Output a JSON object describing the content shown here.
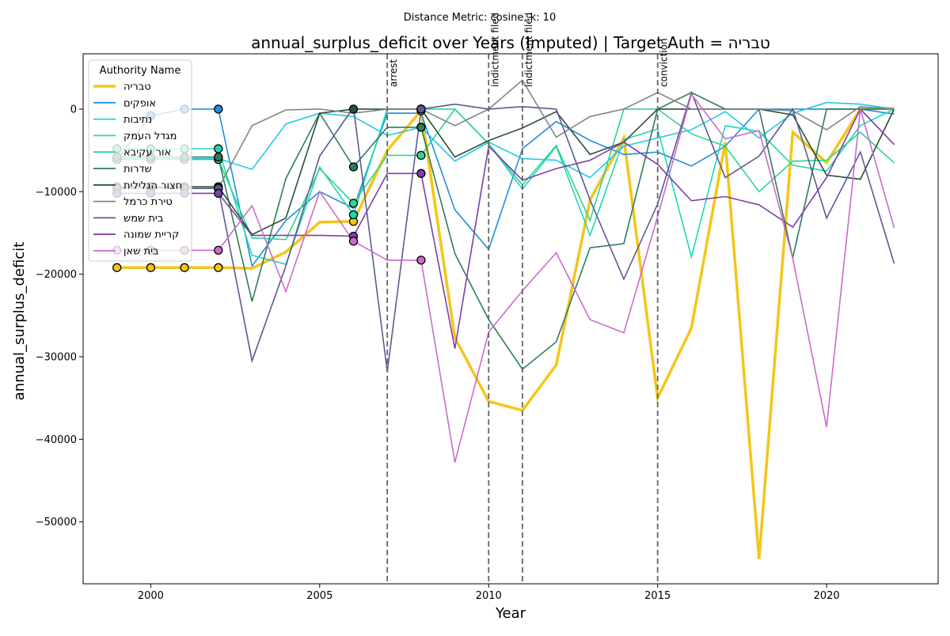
{
  "chart_data": {
    "type": "line",
    "suptitle": "Distance Metric: cosine, k: 10",
    "title": "annual_surplus_deficit over Years (Imputed) | Target Auth = טבריה",
    "xlabel": "Year",
    "ylabel": "annual_surplus_deficit",
    "xlim": [
      1998,
      2023.3
    ],
    "ylim": [
      -57500,
      6700
    ],
    "xticks": [
      2000,
      2005,
      2010,
      2015,
      2020
    ],
    "yticks": [
      -50000,
      -40000,
      -30000,
      -20000,
      -10000,
      0
    ],
    "ytick_labels": [
      "−50000",
      "−40000",
      "−30000",
      "−20000",
      "−10000",
      "0"
    ],
    "grid": false,
    "legend": {
      "title": "Authority Name",
      "placement": "upper-left"
    },
    "events": [
      {
        "year": 2007,
        "label": "arrest"
      },
      {
        "year": 2010,
        "label": "indictment filed"
      },
      {
        "year": 2011,
        "label": "indictment filed"
      },
      {
        "year": 2015,
        "label": "conviction"
      }
    ],
    "x": [
      1999,
      2000,
      2001,
      2002,
      2003,
      2004,
      2005,
      2006,
      2007,
      2008,
      2009,
      2010,
      2011,
      2012,
      2013,
      2014,
      2015,
      2016,
      2017,
      2018,
      2019,
      2020,
      2021,
      2022
    ],
    "series": [
      {
        "name": "טבריה",
        "color": "#f5c518",
        "target": true,
        "values": [
          -19200,
          -19200,
          -19200,
          -19200,
          -19300,
          -17300,
          -13700,
          -13600,
          -5000,
          -200,
          -27700,
          -35400,
          -36500,
          -31000,
          -11000,
          -3500,
          -35000,
          -26500,
          -4000,
          -54500,
          -2800,
          -6500,
          0,
          100
        ],
        "imputed": [
          -19200,
          -19200,
          -19200,
          -19200,
          null,
          null,
          null,
          -13600,
          null,
          -200,
          null,
          null,
          null,
          null,
          null,
          null,
          null,
          null,
          null,
          null,
          null,
          null,
          null,
          null
        ]
      },
      {
        "name": "אופקים",
        "color": "#1f8fdc",
        "values": [
          -6100,
          -800,
          0,
          0,
          -19000,
          -13500,
          -10000,
          -12000,
          -500,
          -500,
          -12200,
          -17000,
          -4800,
          -1500,
          -3800,
          -5500,
          -5200,
          -6900,
          -4500,
          0,
          0,
          0,
          0,
          -600
        ],
        "imputed": [
          -6100,
          -800,
          0,
          0,
          null,
          null,
          null,
          null,
          null,
          null,
          null,
          null,
          null,
          null,
          null,
          null,
          null,
          null,
          null,
          null,
          null,
          null,
          null,
          null
        ]
      },
      {
        "name": "נתיבות",
        "color": "#22c8ea",
        "values": [
          -6000,
          -6000,
          -6000,
          -6000,
          -7300,
          -1800,
          -500,
          -900,
          -3200,
          -2200,
          -6300,
          -4000,
          -6000,
          -6200,
          -8300,
          -4500,
          -3500,
          -2500,
          -300,
          -3500,
          -500,
          800,
          600,
          0
        ],
        "imputed": [
          -6000,
          -6000,
          -6000,
          -6000,
          null,
          null,
          null,
          null,
          null,
          -2200,
          null,
          null,
          null,
          null,
          null,
          null,
          null,
          null,
          null,
          null,
          null,
          null,
          null,
          null
        ]
      },
      {
        "name": "מגדל העמק",
        "color": "#1fd7b4",
        "values": [
          -4800,
          -4800,
          -4800,
          -4800,
          -17700,
          -18800,
          -7000,
          -12800,
          0,
          0,
          0,
          -4200,
          -9700,
          -4500,
          -15300,
          -3700,
          -2400,
          -17900,
          -2000,
          -2700,
          -6800,
          -7500,
          -2000,
          0
        ],
        "imputed": [
          -4800,
          -4800,
          -4800,
          -4800,
          null,
          null,
          null,
          -12800,
          null,
          0,
          null,
          null,
          null,
          null,
          null,
          null,
          null,
          null,
          null,
          null,
          null,
          null,
          null,
          null
        ]
      },
      {
        "name": "אור עקיבא",
        "color": "#2fd392",
        "values": [
          -6100,
          -6100,
          -6100,
          -6100,
          -15600,
          -15800,
          -7200,
          -11400,
          -5600,
          -5600,
          0,
          -4200,
          -9200,
          -4400,
          -13500,
          0,
          0,
          -3000,
          -4500,
          -10000,
          -6300,
          -6200,
          -2800,
          -6500
        ],
        "imputed": [
          -6100,
          -6100,
          -6100,
          -6100,
          null,
          null,
          null,
          -11400,
          null,
          -5600,
          null,
          null,
          null,
          null,
          null,
          null,
          null,
          null,
          null,
          null,
          null,
          null,
          null,
          null
        ]
      },
      {
        "name": "שדרות",
        "color": "#2e7d5b",
        "values": [
          -5800,
          -5800,
          -5800,
          -5800,
          -23300,
          -8400,
          -500,
          -7000,
          -2200,
          -2200,
          -17500,
          -25500,
          -31500,
          -28200,
          -16800,
          -16300,
          0,
          2000,
          0,
          0,
          -18000,
          0,
          0,
          0
        ],
        "imputed": [
          -5800,
          -5800,
          -5800,
          -5800,
          null,
          null,
          null,
          -7000,
          null,
          -2200,
          null,
          null,
          null,
          null,
          null,
          null,
          null,
          null,
          null,
          null,
          null,
          null,
          null,
          null
        ]
      },
      {
        "name": "חצור הגלילית",
        "color": "#2c4f3a",
        "values": [
          -9400,
          -9400,
          -9400,
          -9400,
          -15200,
          -13200,
          -500,
          0,
          0,
          0,
          -5800,
          -3800,
          -2300,
          -300,
          -5500,
          -4000,
          0,
          0,
          0,
          0,
          -700,
          -8000,
          -8500,
          0
        ],
        "imputed": [
          -9400,
          -9400,
          -9400,
          -9400,
          null,
          null,
          null,
          0,
          null,
          0,
          null,
          null,
          null,
          null,
          null,
          null,
          null,
          null,
          null,
          null,
          null,
          null,
          null,
          null
        ]
      },
      {
        "name": "טירת כרמל",
        "color": "#7a8a82",
        "values": [
          -9600,
          -9600,
          -9600,
          -9600,
          -2000,
          -100,
          0,
          -500,
          0,
          0,
          -2000,
          0,
          3500,
          -3400,
          -900,
          0,
          2000,
          0,
          0,
          0,
          -200,
          -2500,
          300,
          0
        ],
        "imputed": [
          -9600,
          -9600,
          -9600,
          -9600,
          null,
          null,
          null,
          null,
          null,
          0,
          null,
          null,
          null,
          null,
          null,
          null,
          null,
          null,
          null,
          null,
          null,
          null,
          null,
          null
        ]
      },
      {
        "name": "בית שמש",
        "color": "#5b5a93",
        "values": [
          -9600,
          -9600,
          -9600,
          -9600,
          -30500,
          -19000,
          -5700,
          200,
          -31800,
          0,
          600,
          0,
          300,
          0,
          -11000,
          -20600,
          -11500,
          2000,
          -8300,
          -5700,
          0,
          -13200,
          -5200,
          -18700
        ],
        "imputed": [
          -9600,
          -9600,
          -9600,
          -9600,
          null,
          null,
          null,
          null,
          null,
          0,
          null,
          null,
          null,
          null,
          null,
          null,
          null,
          null,
          null,
          null,
          null,
          null,
          null,
          null
        ]
      },
      {
        "name": "קריית שמונה",
        "color": "#7d3fa8",
        "values": [
          -10200,
          -10200,
          -10200,
          -10200,
          -15300,
          -15300,
          -15300,
          -15400,
          -7800,
          -7800,
          -29000,
          -4500,
          -8600,
          -7200,
          -6200,
          -4000,
          -6700,
          -11100,
          -10600,
          -11600,
          -14300,
          -8300,
          0,
          -4300
        ],
        "imputed": [
          -10200,
          -10200,
          -10200,
          -10200,
          null,
          null,
          null,
          -15400,
          null,
          -7800,
          null,
          null,
          null,
          null,
          null,
          null,
          null,
          null,
          null,
          null,
          null,
          null,
          null,
          null
        ]
      },
      {
        "name": "בית שאן",
        "color": "#cc6bcc",
        "values": [
          -17100,
          -17100,
          -17100,
          -17100,
          -11700,
          -22100,
          -10000,
          -16000,
          -18300,
          -18300,
          -42800,
          -27000,
          -22000,
          -17400,
          -25500,
          -27100,
          -13000,
          1800,
          -3600,
          -2600,
          -18100,
          -38500,
          0,
          -14400
        ],
        "imputed": [
          -17100,
          -17100,
          -17100,
          -17100,
          null,
          null,
          null,
          -16000,
          null,
          -18300,
          null,
          null,
          null,
          null,
          null,
          null,
          null,
          null,
          null,
          null,
          null,
          null,
          null,
          null
        ]
      }
    ]
  }
}
